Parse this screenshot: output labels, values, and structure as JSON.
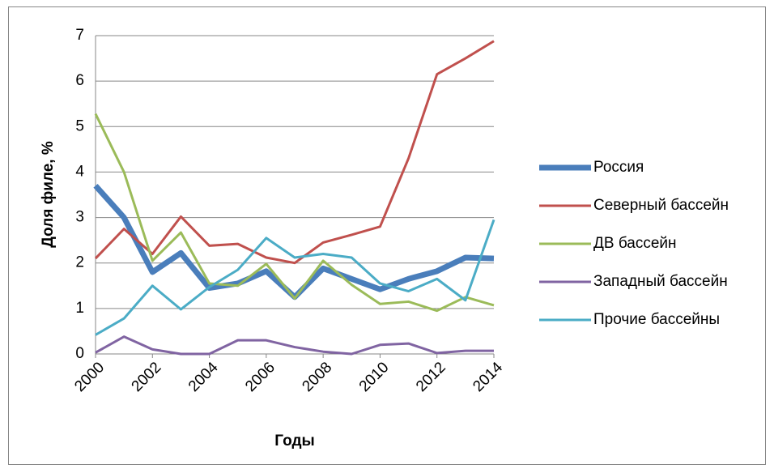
{
  "chart_data": {
    "type": "line",
    "x_label": "Годы",
    "y_label": "Доля филе, %",
    "x": [
      2000,
      2001,
      2002,
      2003,
      2004,
      2005,
      2006,
      2007,
      2008,
      2009,
      2010,
      2011,
      2012,
      2013,
      2014
    ],
    "series": [
      {
        "name": "Россия",
        "color": "#4a7ebb",
        "values": [
          3.7,
          3.0,
          1.8,
          2.22,
          1.45,
          1.55,
          1.82,
          1.25,
          1.88,
          1.65,
          1.42,
          1.65,
          1.82,
          2.12,
          2.1
        ]
      },
      {
        "name": "Северный бассейн",
        "color": "#c0504d",
        "values": [
          2.1,
          2.75,
          2.2,
          3.02,
          2.38,
          2.42,
          2.12,
          2.0,
          2.45,
          2.62,
          2.8,
          4.3,
          6.15,
          6.5,
          6.88
        ]
      },
      {
        "name": "ДВ бассейн",
        "color": "#9bbb59",
        "values": [
          5.28,
          4.0,
          2.05,
          2.67,
          1.55,
          1.5,
          1.98,
          1.22,
          2.05,
          1.52,
          1.1,
          1.15,
          0.95,
          1.25,
          1.07
        ]
      },
      {
        "name": "Западный бассейн",
        "color": "#8064a2",
        "values": [
          0.03,
          0.38,
          0.1,
          0.0,
          0.0,
          0.3,
          0.3,
          0.15,
          0.05,
          0.0,
          0.2,
          0.23,
          0.02,
          0.07,
          0.07
        ]
      },
      {
        "name": "Прочие бассейны",
        "color": "#4bacc6",
        "values": [
          0.42,
          0.78,
          1.5,
          0.98,
          1.47,
          1.85,
          2.55,
          2.12,
          2.2,
          2.12,
          1.55,
          1.38,
          1.65,
          1.18,
          2.95
        ]
      }
    ],
    "xlim": [
      2000,
      2014
    ],
    "xticks": [
      2000,
      2002,
      2004,
      2006,
      2008,
      2010,
      2012,
      2014
    ],
    "ylim": [
      0,
      7
    ],
    "yticks": [
      0,
      1,
      2,
      3,
      4,
      5,
      6,
      7
    ],
    "grid": true,
    "legend": "right"
  }
}
